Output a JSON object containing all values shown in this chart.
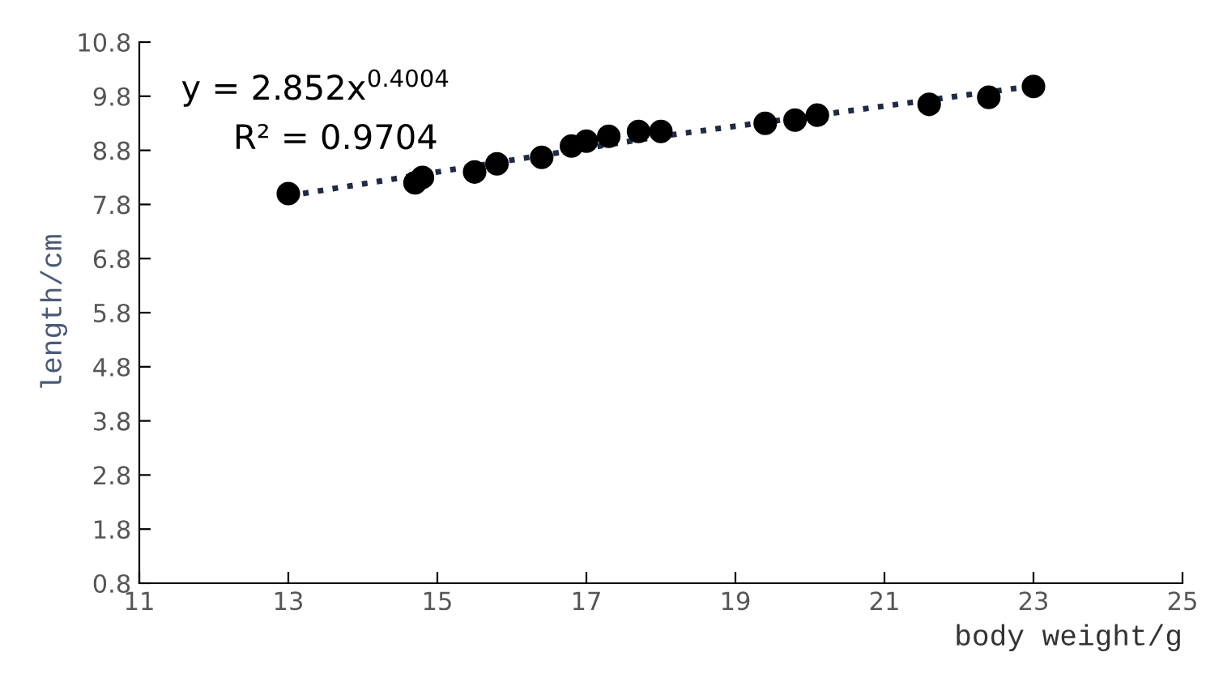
{
  "chart_data": {
    "type": "scatter",
    "xlabel": "body weight/g",
    "ylabel": "length/cm",
    "annotations": [
      "y = 2.852x$^{0.4004}$",
      "R² = 0.9704"
    ],
    "series": [
      {
        "color": "#000000",
        "marker": "circle",
        "x": [
          13,
          14.7,
          14.8,
          15.5,
          15.8,
          16.4,
          16.8,
          17.0,
          17.3,
          17.7,
          18.0,
          19.4,
          19.8,
          20.1,
          21.6,
          22.4,
          23.0
        ],
        "values": [
          8.0,
          8.2,
          8.3,
          8.4,
          8.55,
          8.67,
          8.88,
          8.97,
          9.06,
          9.15,
          9.15,
          9.3,
          9.36,
          9.45,
          9.65,
          9.78,
          9.98
        ]
      },
      {
        "type": "line",
        "color": "#1f2a44",
        "line_style": "dotted",
        "x": [
          13,
          18,
          23
        ],
        "values": [
          7.96,
          9.06,
          9.99
        ]
      }
    ],
    "xlim": [
      11,
      25
    ],
    "xticks": [
      11,
      13,
      15,
      17,
      19,
      21,
      23,
      25
    ],
    "ylim": [
      0.8,
      10.8
    ],
    "yticks": [
      0.8,
      1.8,
      2.8,
      3.8,
      4.8,
      5.8,
      6.8,
      7.8,
      8.8,
      9.8,
      10.8
    ],
    "grid": false,
    "legend": false
  }
}
